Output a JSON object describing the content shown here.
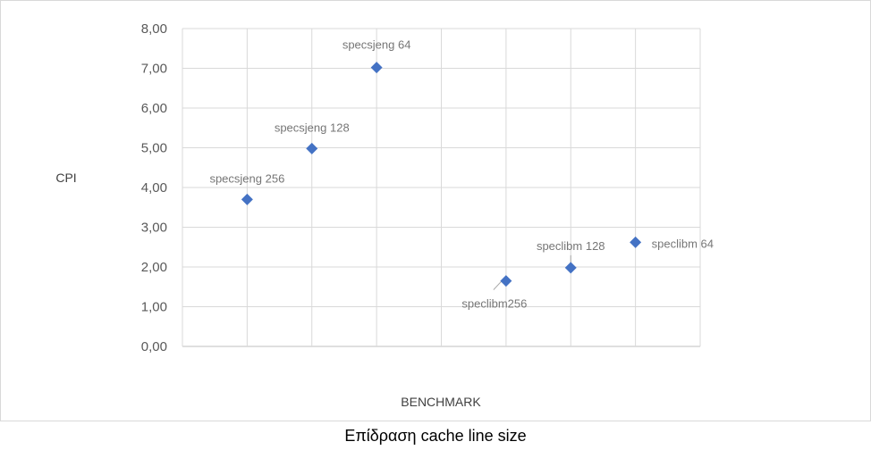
{
  "caption": "Επίδραση cache line size",
  "chart_data": {
    "type": "scatter",
    "title": "",
    "xlabel": "BENCHMARK",
    "ylabel": "CPI",
    "xlim": [
      0,
      8
    ],
    "ylim": [
      0,
      8
    ],
    "y_ticks": [
      "0,00",
      "1,00",
      "2,00",
      "3,00",
      "4,00",
      "5,00",
      "6,00",
      "7,00",
      "8,00"
    ],
    "grid": true,
    "marker_color": "#4472c4",
    "points": [
      {
        "x": 1,
        "y": 3.7,
        "label": "specsjeng 256"
      },
      {
        "x": 2,
        "y": 4.98,
        "label": "specsjeng 128"
      },
      {
        "x": 3,
        "y": 7.02,
        "label": "specsjeng 64"
      },
      {
        "x": 5,
        "y": 1.65,
        "label": "speclibm256"
      },
      {
        "x": 6,
        "y": 1.98,
        "label": "speclibm 128"
      },
      {
        "x": 7,
        "y": 2.62,
        "label": "speclibm 64"
      }
    ]
  }
}
